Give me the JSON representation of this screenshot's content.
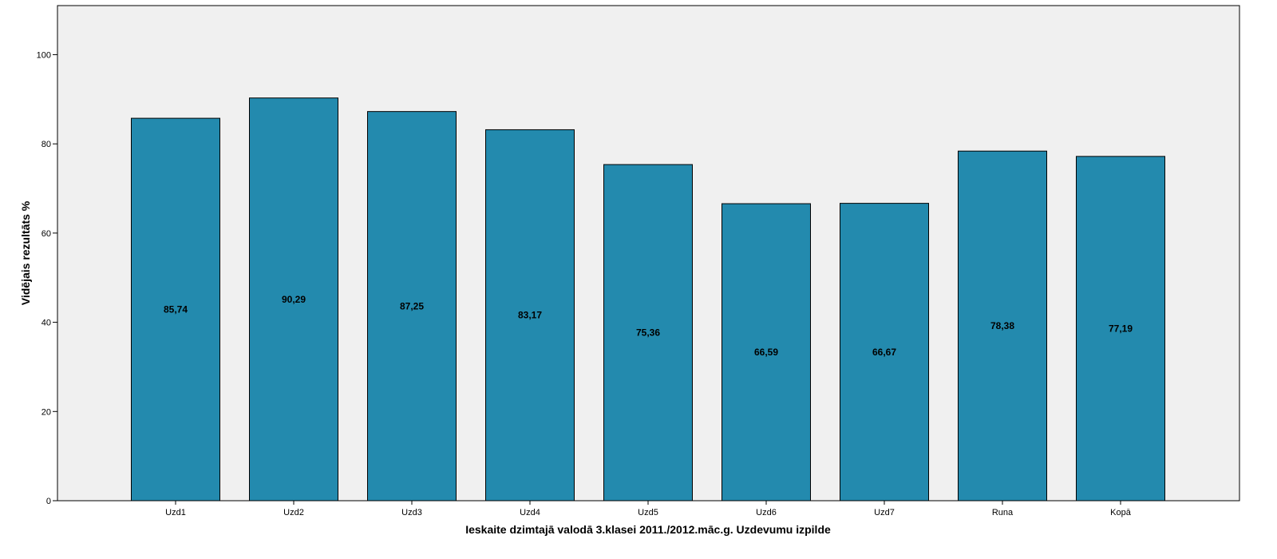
{
  "chart_data": {
    "type": "bar",
    "categories": [
      "Uzd1",
      "Uzd2",
      "Uzd3",
      "Uzd4",
      "Uzd5",
      "Uzd6",
      "Uzd7",
      "Runa",
      "Kopā"
    ],
    "values": [
      85.74,
      90.29,
      87.25,
      83.17,
      75.36,
      66.59,
      66.67,
      78.38,
      77.19
    ],
    "data_labels": [
      "85,74",
      "90,29",
      "87,25",
      "83,17",
      "75,36",
      "66,59",
      "66,67",
      "78,38",
      "77,19"
    ],
    "yticks": [
      "0",
      "20",
      "40",
      "60",
      "80",
      "100"
    ],
    "xlabel": "Ieskaite dzimtajā valodā 3.klasei 2011./2012.māc.g. Uzdevumu izpilde",
    "ylabel": "Vidējais rezultāts %",
    "ylim": [
      0,
      111
    ],
    "grid": false,
    "colors": {
      "bar": "#238aae",
      "plot_background": "#f0f0f0",
      "bar_outline": "#000000"
    }
  }
}
